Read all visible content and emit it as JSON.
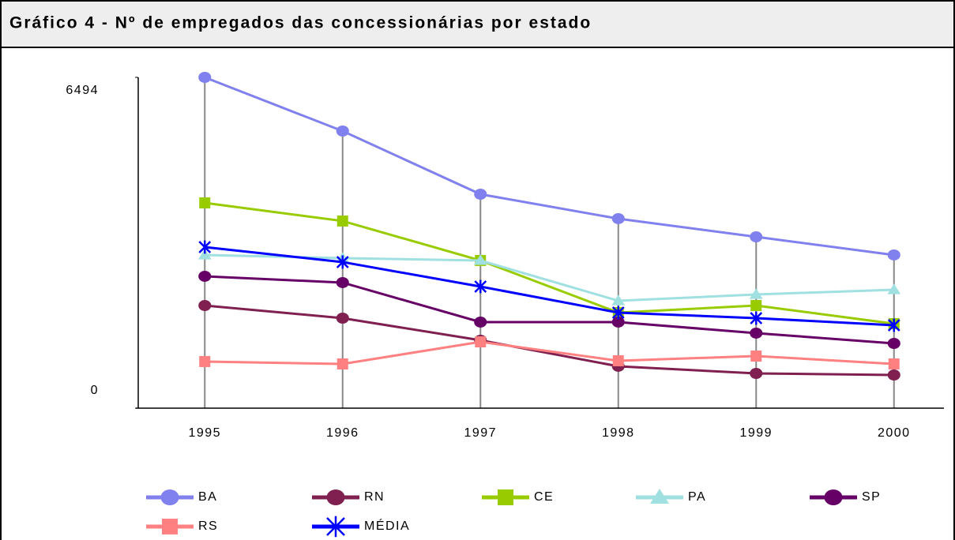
{
  "chart_data": {
    "type": "line",
    "title": "Gráfico 4 - Nº de empregados das concessionárias por estado",
    "categories": [
      "1995",
      "1996",
      "1997",
      "1998",
      "1999",
      "2000"
    ],
    "ylim": [
      0,
      6494
    ],
    "yticks": [
      0,
      6494
    ],
    "series": [
      {
        "name": "BA",
        "color": "#8080ee",
        "marker": "circle",
        "values": [
          6494,
          5440,
          4200,
          3720,
          3363,
          3007
        ]
      },
      {
        "name": "RN",
        "color": "#7f2050",
        "marker": "circle",
        "values": [
          2015,
          1767,
          1333,
          822,
          682,
          651
        ]
      },
      {
        "name": "CE",
        "color": "#99cc00",
        "marker": "square",
        "values": [
          4030,
          3674,
          2899,
          1876,
          2015,
          1659
        ]
      },
      {
        "name": "PA",
        "color": "#a0e0e0",
        "marker": "triangle",
        "values": [
          3007,
          2945,
          2899,
          2108,
          2232,
          2325
        ]
      },
      {
        "name": "SP",
        "color": "#660066",
        "marker": "circle",
        "values": [
          2589,
          2465,
          1690,
          1690,
          1473,
          1271
        ]
      },
      {
        "name": "RS",
        "color": "#ff8080",
        "marker": "square",
        "values": [
          915,
          868,
          1302,
          930,
          1023,
          868
        ]
      },
      {
        "name": "MÉDIA",
        "color": "#0000ff",
        "marker": "star",
        "values": [
          3162,
          2868,
          2387,
          1876,
          1767,
          1628
        ]
      }
    ]
  }
}
